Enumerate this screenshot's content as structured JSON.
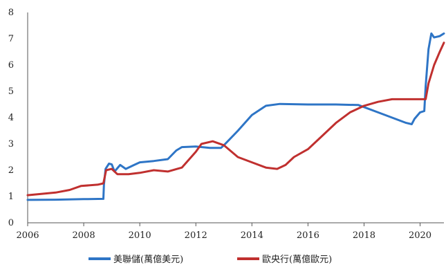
{
  "chart_data": {
    "type": "line",
    "title": "",
    "xlabel": "",
    "ylabel": "",
    "xlim": [
      2006,
      2020.85
    ],
    "ylim": [
      0,
      8
    ],
    "x_ticks": [
      2006,
      2008,
      2010,
      2012,
      2014,
      2016,
      2018,
      2020
    ],
    "y_ticks": [
      0,
      1,
      2,
      3,
      4,
      5,
      6,
      7,
      8
    ],
    "grid": false,
    "legend_position": "bottom-center",
    "series": [
      {
        "name": "美聯儲(萬億美元)",
        "color": "#2e75c6",
        "points": [
          [
            2006.0,
            0.87
          ],
          [
            2007.0,
            0.88
          ],
          [
            2008.0,
            0.9
          ],
          [
            2008.7,
            0.91
          ],
          [
            2008.72,
            1.45
          ],
          [
            2008.78,
            2.05
          ],
          [
            2008.9,
            2.25
          ],
          [
            2009.0,
            2.22
          ],
          [
            2009.1,
            1.95
          ],
          [
            2009.3,
            2.2
          ],
          [
            2009.5,
            2.05
          ],
          [
            2009.8,
            2.2
          ],
          [
            2010.0,
            2.3
          ],
          [
            2010.5,
            2.35
          ],
          [
            2011.0,
            2.42
          ],
          [
            2011.3,
            2.75
          ],
          [
            2011.5,
            2.88
          ],
          [
            2012.0,
            2.9
          ],
          [
            2012.5,
            2.85
          ],
          [
            2012.9,
            2.85
          ],
          [
            2013.0,
            2.95
          ],
          [
            2013.5,
            3.5
          ],
          [
            2014.0,
            4.1
          ],
          [
            2014.5,
            4.45
          ],
          [
            2015.0,
            4.52
          ],
          [
            2016.0,
            4.5
          ],
          [
            2017.0,
            4.5
          ],
          [
            2017.8,
            4.48
          ],
          [
            2018.5,
            4.2
          ],
          [
            2019.0,
            4.0
          ],
          [
            2019.5,
            3.8
          ],
          [
            2019.7,
            3.75
          ],
          [
            2019.8,
            3.95
          ],
          [
            2020.0,
            4.2
          ],
          [
            2020.15,
            4.25
          ],
          [
            2020.2,
            5.2
          ],
          [
            2020.3,
            6.6
          ],
          [
            2020.4,
            7.2
          ],
          [
            2020.5,
            7.05
          ],
          [
            2020.7,
            7.1
          ],
          [
            2020.85,
            7.2
          ]
        ]
      },
      {
        "name": "歐央行(萬億歐元)",
        "color": "#c0302f",
        "points": [
          [
            2006.0,
            1.05
          ],
          [
            2007.0,
            1.15
          ],
          [
            2007.5,
            1.25
          ],
          [
            2007.9,
            1.4
          ],
          [
            2008.5,
            1.45
          ],
          [
            2008.7,
            1.5
          ],
          [
            2008.8,
            2.0
          ],
          [
            2009.0,
            2.05
          ],
          [
            2009.2,
            1.85
          ],
          [
            2009.6,
            1.85
          ],
          [
            2010.0,
            1.9
          ],
          [
            2010.5,
            2.0
          ],
          [
            2011.0,
            1.95
          ],
          [
            2011.5,
            2.1
          ],
          [
            2012.0,
            2.7
          ],
          [
            2012.2,
            3.0
          ],
          [
            2012.6,
            3.1
          ],
          [
            2013.0,
            2.95
          ],
          [
            2013.5,
            2.5
          ],
          [
            2014.0,
            2.3
          ],
          [
            2014.5,
            2.1
          ],
          [
            2014.9,
            2.05
          ],
          [
            2015.2,
            2.2
          ],
          [
            2015.5,
            2.5
          ],
          [
            2016.0,
            2.8
          ],
          [
            2016.5,
            3.3
          ],
          [
            2017.0,
            3.8
          ],
          [
            2017.5,
            4.2
          ],
          [
            2018.0,
            4.45
          ],
          [
            2018.5,
            4.6
          ],
          [
            2019.0,
            4.7
          ],
          [
            2019.5,
            4.7
          ],
          [
            2020.0,
            4.7
          ],
          [
            2020.2,
            4.7
          ],
          [
            2020.3,
            5.3
          ],
          [
            2020.5,
            6.0
          ],
          [
            2020.7,
            6.5
          ],
          [
            2020.85,
            6.85
          ]
        ]
      }
    ]
  }
}
